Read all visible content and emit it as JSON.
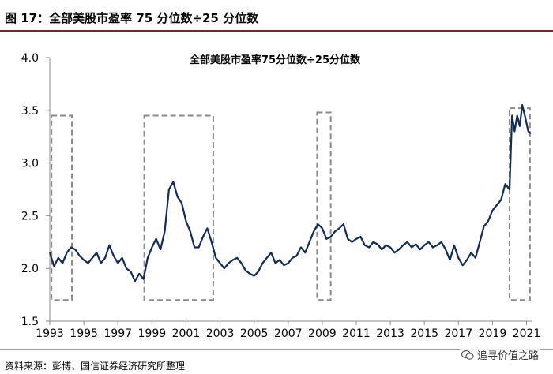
{
  "figure": {
    "title": "图 17：全部美股市盈率 75 分位数÷25 分位数",
    "source": "资料来源：彭博、国信证券经济研究所整理",
    "watermark": "追寻价值之路",
    "watermark_icon": "wechat-icon"
  },
  "colors": {
    "line": "#0e2b5c",
    "box": "#8a8a8a",
    "title_rule": "#8a1d2b",
    "axis": "#888888"
  },
  "chart_data": {
    "type": "line",
    "title": "全部美股市盈率75分位数÷25分位数",
    "xlabel": "",
    "ylabel": "",
    "xlim": [
      1993,
      2021.3
    ],
    "ylim": [
      1.5,
      4.0
    ],
    "yticks": [
      "1.5",
      "2.0",
      "2.5",
      "3.0",
      "3.5",
      "4.0"
    ],
    "xticks": [
      "1993",
      "1995",
      "1997",
      "1999",
      "2001",
      "2003",
      "2005",
      "2007",
      "2009",
      "2011",
      "2013",
      "2015",
      "2017",
      "2019",
      "2021"
    ],
    "grid": false,
    "legend": "none",
    "series": [
      {
        "x": [
          1993.0,
          1993.25,
          1993.5,
          1993.75,
          1994.0,
          1994.25,
          1994.5,
          1994.75,
          1995.0,
          1995.25,
          1995.5,
          1995.75,
          1996.0,
          1996.25,
          1996.5,
          1996.75,
          1997.0,
          1997.25,
          1997.5,
          1997.75,
          1998.0,
          1998.25,
          1998.5,
          1998.75,
          1999.0,
          1999.25,
          1999.5,
          1999.75,
          2000.0,
          2000.25,
          2000.5,
          2000.75,
          2001.0,
          2001.25,
          2001.5,
          2001.75,
          2002.0,
          2002.25,
          2002.5,
          2002.75,
          2003.0,
          2003.25,
          2003.5,
          2003.75,
          2004.0,
          2004.25,
          2004.5,
          2004.75,
          2005.0,
          2005.25,
          2005.5,
          2005.75,
          2006.0,
          2006.25,
          2006.5,
          2006.75,
          2007.0,
          2007.25,
          2007.5,
          2007.75,
          2008.0,
          2008.25,
          2008.5,
          2008.75,
          2009.0,
          2009.25,
          2009.5,
          2009.75,
          2010.0,
          2010.25,
          2010.5,
          2010.75,
          2011.0,
          2011.25,
          2011.5,
          2011.75,
          2012.0,
          2012.25,
          2012.5,
          2012.75,
          2013.0,
          2013.25,
          2013.5,
          2013.75,
          2014.0,
          2014.25,
          2014.5,
          2014.75,
          2015.0,
          2015.25,
          2015.5,
          2015.75,
          2016.0,
          2016.25,
          2016.5,
          2016.75,
          2017.0,
          2017.25,
          2017.5,
          2017.75,
          2018.0,
          2018.25,
          2018.5,
          2018.75,
          2019.0,
          2019.25,
          2019.5,
          2019.75,
          2020.0,
          2020.15,
          2020.3,
          2020.45,
          2020.6,
          2020.75,
          2020.9,
          2021.1,
          2021.25
        ],
        "values": [
          2.15,
          2.02,
          2.1,
          2.05,
          2.15,
          2.2,
          2.18,
          2.12,
          2.08,
          2.05,
          2.1,
          2.15,
          2.05,
          2.1,
          2.22,
          2.12,
          2.05,
          2.1,
          2.0,
          1.97,
          1.88,
          1.95,
          1.9,
          2.1,
          2.2,
          2.28,
          2.18,
          2.35,
          2.75,
          2.82,
          2.68,
          2.62,
          2.45,
          2.35,
          2.2,
          2.2,
          2.3,
          2.38,
          2.25,
          2.1,
          2.05,
          2.0,
          2.05,
          2.08,
          2.1,
          2.05,
          1.98,
          1.95,
          1.93,
          1.97,
          2.05,
          2.1,
          2.15,
          2.05,
          2.08,
          2.03,
          2.05,
          2.1,
          2.12,
          2.2,
          2.15,
          2.25,
          2.35,
          2.42,
          2.38,
          2.28,
          2.3,
          2.35,
          2.38,
          2.42,
          2.28,
          2.25,
          2.28,
          2.3,
          2.22,
          2.2,
          2.25,
          2.23,
          2.18,
          2.22,
          2.2,
          2.15,
          2.18,
          2.22,
          2.25,
          2.2,
          2.23,
          2.18,
          2.22,
          2.25,
          2.2,
          2.22,
          2.25,
          2.18,
          2.08,
          2.22,
          2.1,
          2.03,
          2.08,
          2.15,
          2.1,
          2.25,
          2.4,
          2.45,
          2.55,
          2.6,
          2.65,
          2.8,
          2.75,
          3.45,
          3.3,
          3.45,
          3.35,
          3.55,
          3.45,
          3.3,
          3.28
        ]
      }
    ],
    "annotations": [
      {
        "type": "dashed-box",
        "x": [
          1993.1,
          1994.3
        ],
        "y": [
          1.7,
          3.45
        ]
      },
      {
        "type": "dashed-box",
        "x": [
          1998.55,
          2002.6
        ],
        "y": [
          1.7,
          3.45
        ]
      },
      {
        "type": "dashed-box",
        "x": [
          2008.7,
          2009.5
        ],
        "y": [
          1.7,
          3.48
        ]
      },
      {
        "type": "dashed-box",
        "x": [
          2020.0,
          2021.2
        ],
        "y": [
          1.7,
          3.52
        ]
      }
    ]
  }
}
